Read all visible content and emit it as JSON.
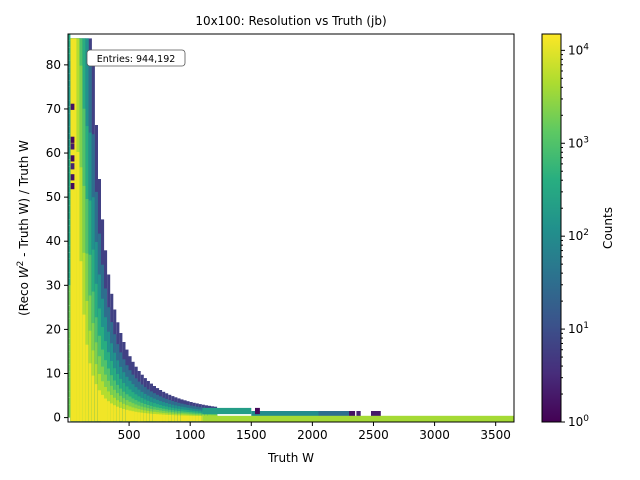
{
  "chart_data": {
    "type": "heatmap",
    "title": "10x100: Resolution vs Truth (jb)",
    "xlabel": "Truth W",
    "ylabel_parts": {
      "pre": "(Reco ",
      "var": "W",
      "sup": "2",
      "post": " - Truth W) / Truth W"
    },
    "xlim": [
      0,
      3650
    ],
    "ylim": [
      -1,
      87
    ],
    "xticks": [
      500,
      1000,
      1500,
      2000,
      2500,
      3000,
      3500
    ],
    "yticks": [
      0,
      10,
      20,
      30,
      40,
      50,
      60,
      70,
      80
    ],
    "entries_label": "Entries: 944,192",
    "colorbar": {
      "label": "Counts",
      "scale": "log",
      "range": [
        1,
        15000
      ],
      "tick_exponents": [
        0,
        1,
        2,
        3,
        4
      ],
      "tick_base": "10"
    },
    "colormap": "viridis",
    "grid": false,
    "bands": [
      {
        "k": 20,
        "level": 4.1
      },
      {
        "k": 32,
        "level": 3.7
      },
      {
        "k": 45,
        "level": 3.35
      },
      {
        "k": 60,
        "level": 3.0
      },
      {
        "k": 80,
        "level": 2.6
      },
      {
        "k": 105,
        "level": 2.1
      },
      {
        "k": 135,
        "level": 1.5
      },
      {
        "k": 175,
        "level": 0.8
      }
    ],
    "floor_cells": [
      {
        "x0": 1100,
        "x1": 1500,
        "y": 1.5,
        "level": 2.3
      },
      {
        "x0": 1500,
        "x1": 2050,
        "y": 0.8,
        "level": 2.0
      },
      {
        "x0": 2050,
        "x1": 2300,
        "y": 0.8,
        "level": 1.5
      },
      {
        "x0": 2300,
        "x1": 2350,
        "y": 0.8,
        "level": 0.2
      },
      {
        "x0": 2360,
        "x1": 2395,
        "y": 0.8,
        "level": 0.4
      },
      {
        "x0": 2480,
        "x1": 2560,
        "y": 0.8,
        "level": 0.3
      },
      {
        "x0": 1100,
        "x1": 3650,
        "y": -0.3,
        "level": 3.6
      },
      {
        "x0": 1530,
        "x1": 1570,
        "y": 1.5,
        "level": 0.1
      }
    ],
    "outliers": [
      {
        "x": 37,
        "y": 70.5,
        "level": 0.2
      },
      {
        "x": 37,
        "y": 63,
        "level": 0.1
      },
      {
        "x": 37,
        "y": 61.5,
        "level": 0.3
      },
      {
        "x": 37,
        "y": 58.8,
        "level": 0.1
      },
      {
        "x": 37,
        "y": 57,
        "level": 0.4
      },
      {
        "x": 37,
        "y": 54.5,
        "level": 0.2
      },
      {
        "x": 37,
        "y": 52.5,
        "level": 0.1
      }
    ]
  }
}
